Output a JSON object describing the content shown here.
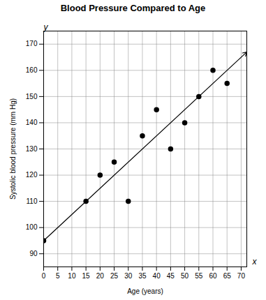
{
  "chart_data": {
    "type": "scatter",
    "title": "Blood Pressure Compared to Age",
    "x_label": "Age (years)",
    "y_label": "Systolic blood pressure (mm Hg)",
    "x": [
      0,
      15,
      20,
      25,
      30,
      35,
      40,
      45,
      50,
      55,
      60,
      65
    ],
    "values": [
      95,
      110,
      120,
      125,
      110,
      135,
      145,
      130,
      140,
      150,
      160,
      155
    ],
    "trend_line": {
      "x": [
        0,
        72
      ],
      "values": [
        95,
        167
      ]
    },
    "annotations": [
      "x",
      "y"
    ],
    "color": "#000000",
    "marker": "circle",
    "xlim": [
      0,
      72
    ],
    "xticks": [
      0,
      5,
      10,
      15,
      20,
      25,
      30,
      35,
      40,
      45,
      50,
      55,
      60,
      65,
      70
    ],
    "ylim": [
      85,
      175
    ],
    "yticks": [
      90,
      100,
      110,
      120,
      130,
      140,
      150,
      160,
      170
    ],
    "grid": true
  }
}
